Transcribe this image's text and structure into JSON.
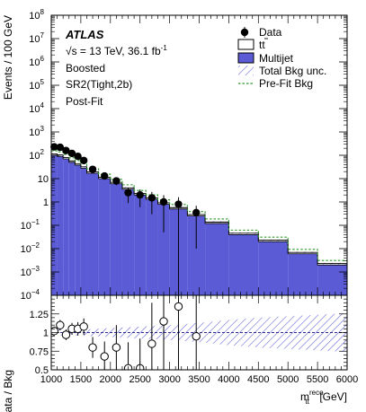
{
  "chart_data": {
    "type": "histogram",
    "experiment": "ATLAS",
    "energy_line": "√s = 13 TeV, 36.1 fb",
    "energy_sup": "-1",
    "region_lines": [
      "Boosted",
      "SR2(Tight,2b)",
      "Post-Fit"
    ],
    "x_axis": {
      "label_base": "m",
      "label_sub": "tt",
      "label_sup": "reco",
      "label_unit": " [GeV]",
      "range": [
        1000,
        6000
      ],
      "ticks": [
        1000,
        1500,
        2000,
        2500,
        3000,
        3500,
        4000,
        4500,
        5000,
        5500,
        6000
      ]
    },
    "top_panel": {
      "ylabel": "Events / 100 GeV",
      "ylog": true,
      "ylim_exp": [
        -4,
        8
      ],
      "legend": {
        "data": "Data",
        "ttbar": "tt",
        "multijet": "Multijet",
        "unc": "Total Bkg unc.",
        "prefit": "Pre-Fit Bkg"
      },
      "multijet_bins": [
        {
          "lo": 1000,
          "hi": 1100,
          "v": 100
        },
        {
          "lo": 1100,
          "hi": 1200,
          "v": 90
        },
        {
          "lo": 1200,
          "hi": 1300,
          "v": 70
        },
        {
          "lo": 1300,
          "hi": 1400,
          "v": 50
        },
        {
          "lo": 1400,
          "hi": 1500,
          "v": 38
        },
        {
          "lo": 1500,
          "hi": 1600,
          "v": 28
        },
        {
          "lo": 1600,
          "hi": 1800,
          "v": 17
        },
        {
          "lo": 1800,
          "hi": 2000,
          "v": 10
        },
        {
          "lo": 2000,
          "hi": 2200,
          "v": 6
        },
        {
          "lo": 2200,
          "hi": 2400,
          "v": 3.5
        },
        {
          "lo": 2400,
          "hi": 2600,
          "v": 2
        },
        {
          "lo": 2600,
          "hi": 2800,
          "v": 1.3
        },
        {
          "lo": 2800,
          "hi": 3000,
          "v": 0.8
        },
        {
          "lo": 3000,
          "hi": 3300,
          "v": 0.5
        },
        {
          "lo": 3300,
          "hi": 3600,
          "v": 0.25
        },
        {
          "lo": 3600,
          "hi": 4000,
          "v": 0.12
        },
        {
          "lo": 4000,
          "hi": 4500,
          "v": 0.04
        },
        {
          "lo": 4500,
          "hi": 5000,
          "v": 0.02
        },
        {
          "lo": 5000,
          "hi": 5500,
          "v": 0.006
        },
        {
          "lo": 5500,
          "hi": 6000,
          "v": 0.002
        }
      ],
      "ttbar_fraction": 0.15,
      "prefit_factor": 1.35,
      "data_points": [
        {
          "x": 1050,
          "y": 230,
          "err": 15
        },
        {
          "x": 1150,
          "y": 220,
          "err": 15
        },
        {
          "x": 1250,
          "y": 160,
          "err": 12
        },
        {
          "x": 1350,
          "y": 120,
          "err": 11
        },
        {
          "x": 1450,
          "y": 90,
          "err": 9
        },
        {
          "x": 1550,
          "y": 60,
          "err": 8
        },
        {
          "x": 1700,
          "y": 25,
          "err": 5
        },
        {
          "x": 1900,
          "y": 13,
          "err": 3.6
        },
        {
          "x": 2100,
          "y": 8,
          "err": 2.8
        },
        {
          "x": 2300,
          "y": 2.5,
          "err": 1.6
        },
        {
          "x": 2500,
          "y": 2,
          "err": 1.4
        },
        {
          "x": 2700,
          "y": 1.5,
          "err": 1.2
        },
        {
          "x": 2900,
          "y": 1,
          "err": 0.95
        },
        {
          "x": 3150,
          "y": 0.8,
          "err": 0.8
        },
        {
          "x": 3450,
          "y": 0.35,
          "err": 0.34
        }
      ]
    },
    "ratio_panel": {
      "ylabel": "Data / Bkg",
      "ylim": [
        0.5,
        1.5
      ],
      "yticks": [
        0.5,
        0.75,
        1,
        1.25
      ],
      "points": [
        {
          "x": 1050,
          "y": 1.02,
          "err": 0.06
        },
        {
          "x": 1150,
          "y": 1.1,
          "err": 0.07
        },
        {
          "x": 1250,
          "y": 0.97,
          "err": 0.07
        },
        {
          "x": 1350,
          "y": 1.05,
          "err": 0.08
        },
        {
          "x": 1450,
          "y": 1.05,
          "err": 0.09
        },
        {
          "x": 1550,
          "y": 1.08,
          "err": 0.11
        },
        {
          "x": 1700,
          "y": 0.8,
          "err": 0.14
        },
        {
          "x": 1900,
          "y": 0.68,
          "err": 0.2
        },
        {
          "x": 2100,
          "y": 0.8,
          "err": 0.3
        },
        {
          "x": 2300,
          "y": 0.52,
          "err": 0.35
        },
        {
          "x": 2500,
          "y": 0.52,
          "err": 0.4
        },
        {
          "x": 2700,
          "y": 0.85,
          "err": 0.55
        },
        {
          "x": 2900,
          "y": 1.15,
          "err": 1.0
        },
        {
          "x": 3150,
          "y": 1.35,
          "err": 1.0
        },
        {
          "x": 3450,
          "y": 0.95,
          "err": 0.95
        }
      ],
      "unc_band": [
        {
          "x": 1000,
          "u": 0.04
        },
        {
          "x": 1500,
          "u": 0.04
        },
        {
          "x": 2000,
          "u": 0.06
        },
        {
          "x": 2500,
          "u": 0.08
        },
        {
          "x": 3000,
          "u": 0.1
        },
        {
          "x": 3500,
          "u": 0.13
        },
        {
          "x": 4000,
          "u": 0.17
        },
        {
          "x": 4500,
          "u": 0.2
        },
        {
          "x": 5000,
          "u": 0.22
        },
        {
          "x": 5500,
          "u": 0.24
        },
        {
          "x": 6000,
          "u": 0.26
        }
      ]
    }
  }
}
